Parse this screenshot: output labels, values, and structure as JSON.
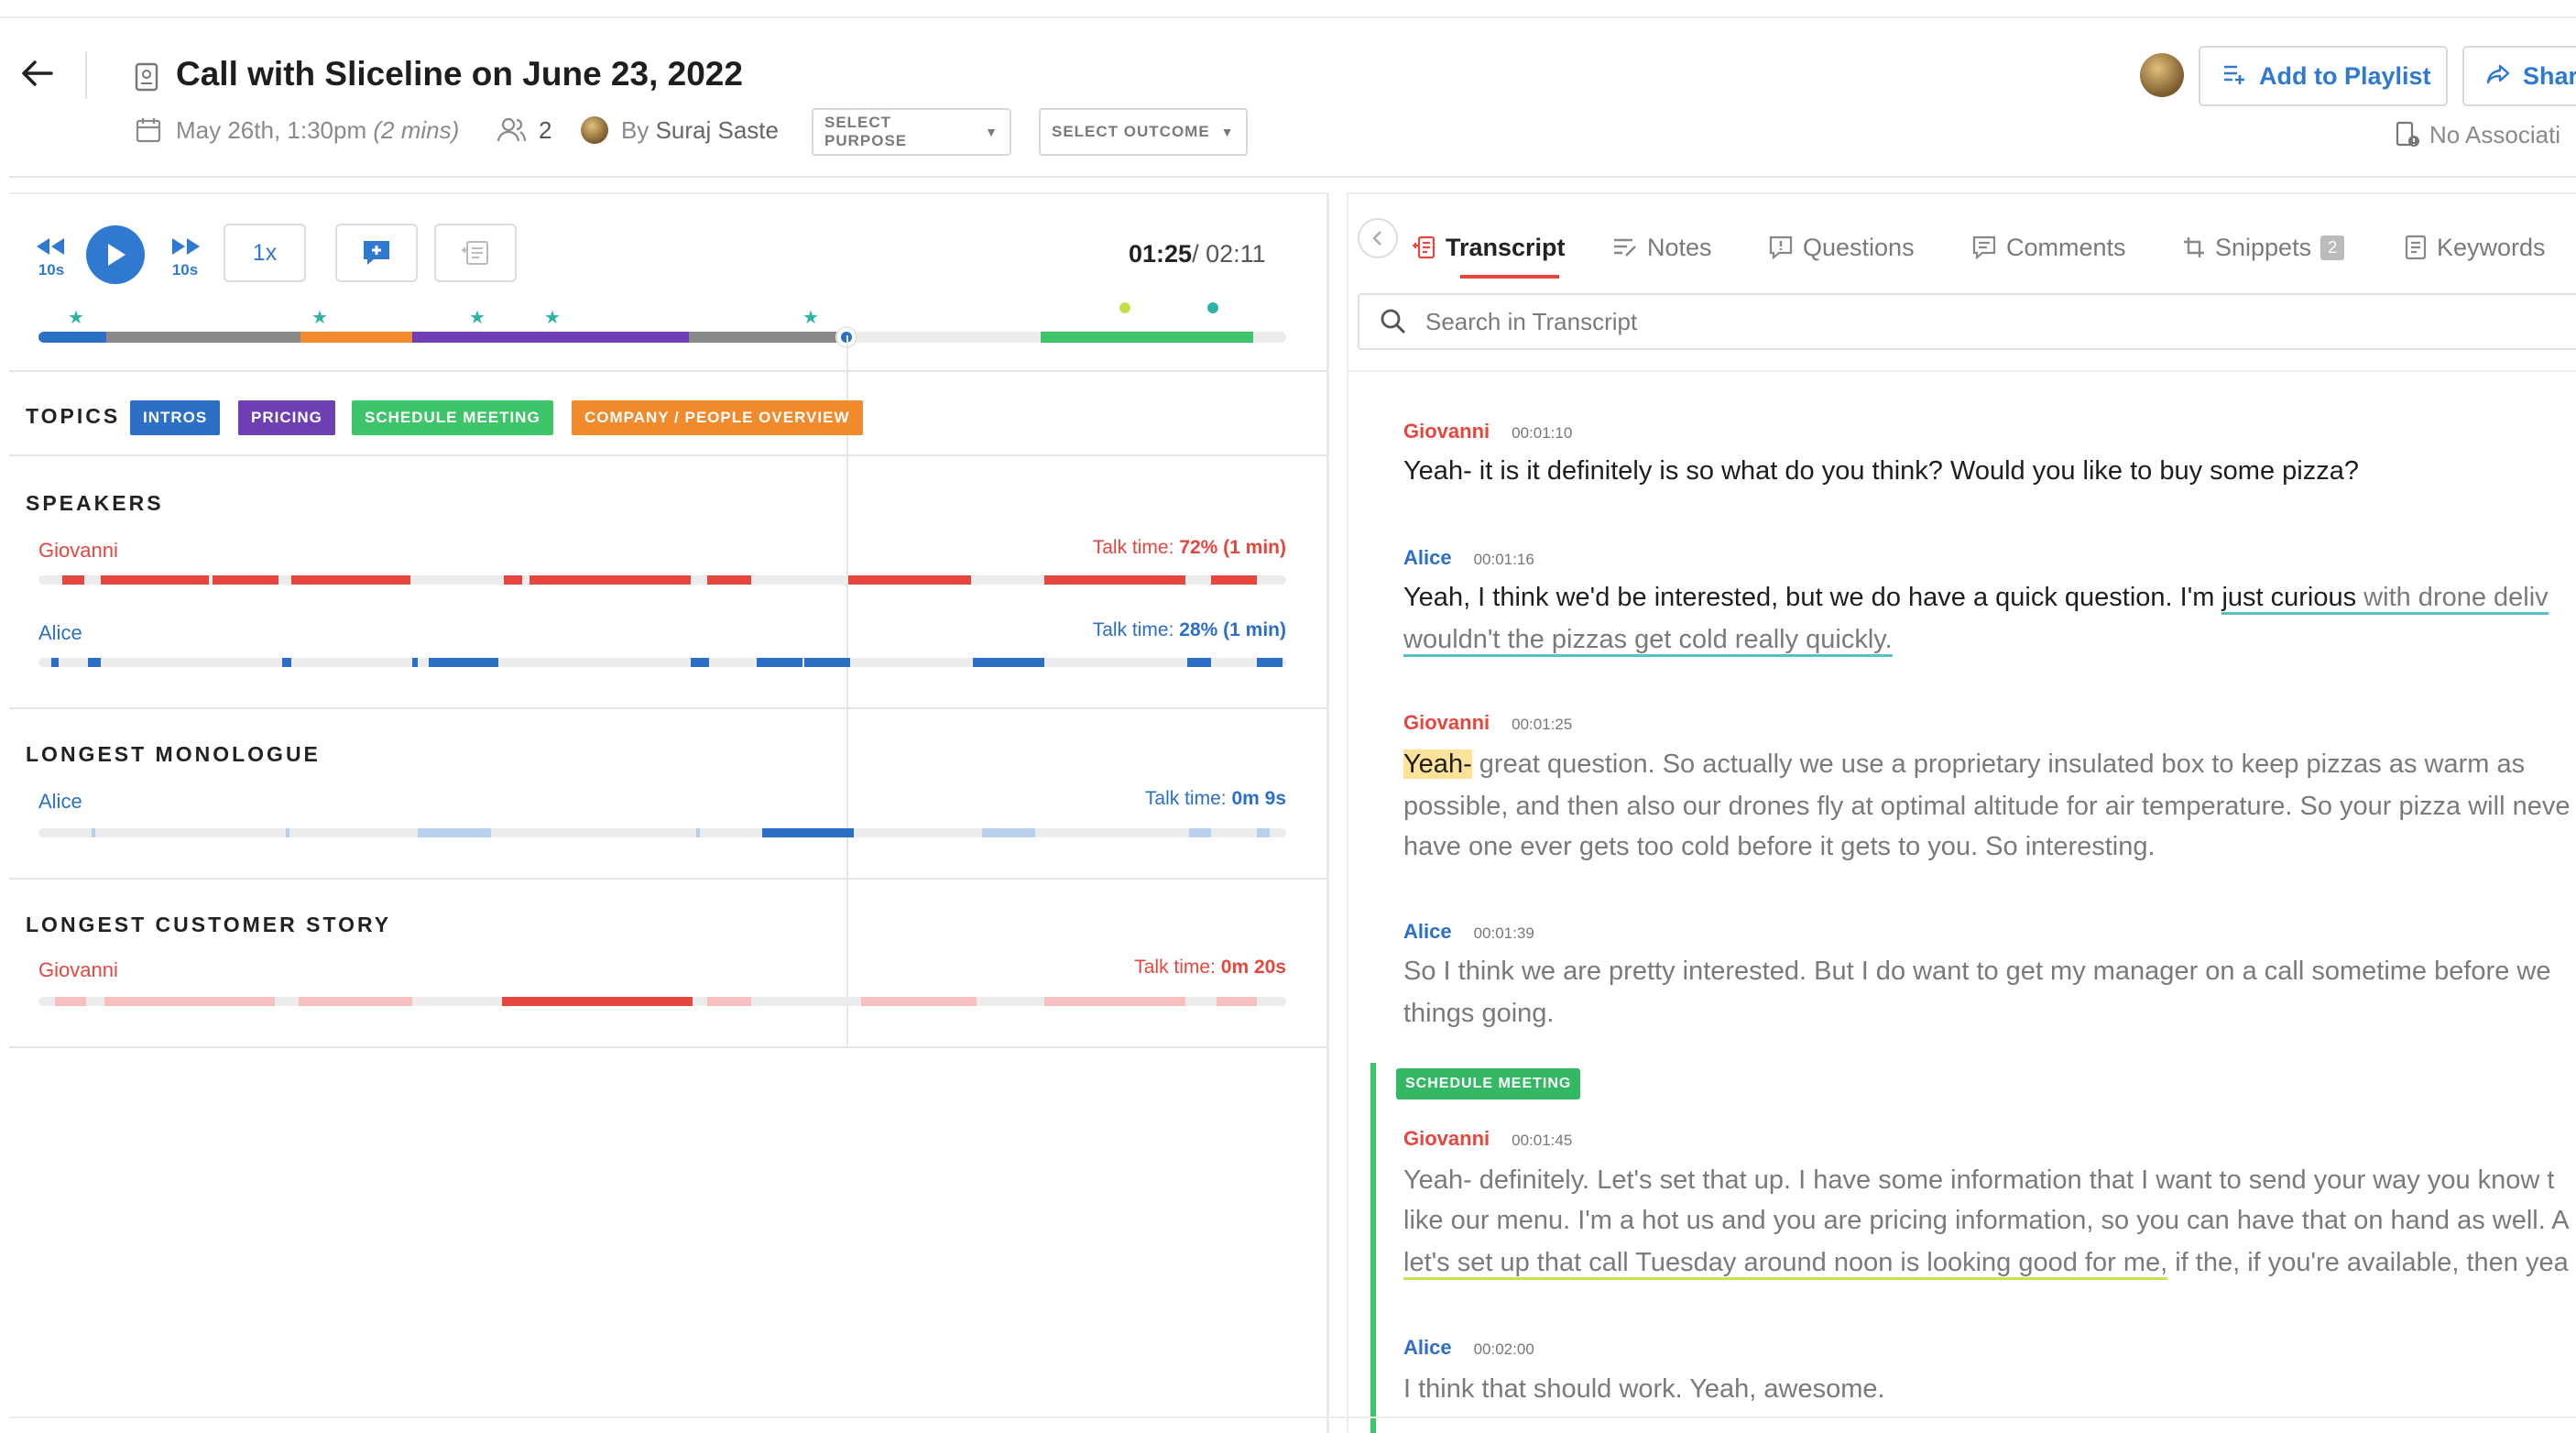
{
  "header": {
    "title": "Call with Sliceline on June 23, 2022",
    "date": "May 26th, 1:30pm",
    "duration": "(2 mins)",
    "participants_count": "2",
    "by_label": "By",
    "author": "Suraj Saste",
    "select_purpose": "SELECT PURPOSE",
    "select_outcome": "SELECT OUTCOME",
    "add_to_playlist": "Add to Playlist",
    "share": "Shar",
    "no_association": "No Associati"
  },
  "player": {
    "skip_back": "10s",
    "skip_forward": "10s",
    "speed": "1x",
    "current_time": "01:25",
    "total_time": "/ 02:11",
    "progress": 0.65,
    "timeline_colors": {
      "played": "#8a8a8a",
      "intros": "#2b6fc7",
      "pricing": "#6e3fb3",
      "company": "#f08a2c",
      "schedule": "#3ec56a"
    }
  },
  "topics": {
    "title": "TOPICS",
    "chips": [
      {
        "label": "INTROS",
        "color": "#2b6fc7"
      },
      {
        "label": "PRICING",
        "color": "#6e3fb3"
      },
      {
        "label": "SCHEDULE MEETING",
        "color": "#3ec56a"
      },
      {
        "label": "COMPANY / PEOPLE OVERVIEW",
        "color": "#f08a2c"
      }
    ]
  },
  "speakers": {
    "title": "SPEAKERS",
    "list": [
      {
        "name": "Giovanni",
        "talk_label": "Talk time:",
        "talk_pct": "72%",
        "talk_min": "(1 min)",
        "color": "#e5473e"
      },
      {
        "name": "Alice",
        "talk_label": "Talk time:",
        "talk_pct": "28%",
        "talk_min": "(1 min)",
        "color": "#2b6fc7"
      }
    ]
  },
  "longest_monologue": {
    "title": "LONGEST MONOLOGUE",
    "speaker": "Alice",
    "talk_label": "Talk time:",
    "talk_value": "0m 9s"
  },
  "longest_story": {
    "title": "LONGEST CUSTOMER STORY",
    "speaker": "Giovanni",
    "talk_label": "Talk time:",
    "talk_value": "0m 20s"
  },
  "tabs": [
    {
      "label": "Transcript",
      "icon": "transcript-icon",
      "active": true
    },
    {
      "label": "Notes",
      "icon": "notes-icon"
    },
    {
      "label": "Questions",
      "icon": "questions-icon"
    },
    {
      "label": "Comments",
      "icon": "comments-icon"
    },
    {
      "label": "Snippets",
      "icon": "snippets-icon",
      "badge": "2"
    },
    {
      "label": "Keywords",
      "icon": "keywords-icon"
    }
  ],
  "search": {
    "placeholder": "Search in Transcript"
  },
  "transcript": [
    {
      "speaker": "Giovanni",
      "time": "00:01:10",
      "lines": [
        "Yeah- it is it definitely is so what do you think? Would you like to buy some pizza?"
      ]
    },
    {
      "speaker": "Alice",
      "time": "00:01:16",
      "line1_a": "Yeah, I think we'd be interested, but we do have a quick question. I'm ",
      "line1_b": "just curious",
      "line1_c": " with drone deliv",
      "line2": "wouldn't the pizzas get cold really quickly."
    },
    {
      "speaker": "Giovanni",
      "time": "00:01:25",
      "line1_hl": "Yeah-",
      "line1_rest": " great question. So actually we use a proprietary insulated box to keep pizzas as warm as",
      "line2": "possible, and then also our drones fly at optimal altitude for air temperature. So your pizza will neve",
      "line3": "have one ever gets too cold before it gets to you. So interesting."
    },
    {
      "speaker": "Alice",
      "time": "00:01:39",
      "line1": "So I think we are pretty interested. But I do want to get my manager on a call sometime before we",
      "line2": "things going."
    },
    {
      "tag": "SCHEDULE MEETING",
      "speaker": "Giovanni",
      "time": "00:01:45",
      "line1": "Yeah- definitely. Let's set that up. I have some information that I want to send your way you know t",
      "line2": "like our menu. I'm a hot us and you are pricing information, so you can have that on hand as well. A",
      "line3_ul": "let's set up that call Tuesday around noon is looking good for me,",
      "line3_rest": " if the, if you're available, then yea"
    },
    {
      "speaker": "Alice",
      "time": "00:02:00",
      "line1": "I think that should work. Yeah, awesome."
    }
  ]
}
